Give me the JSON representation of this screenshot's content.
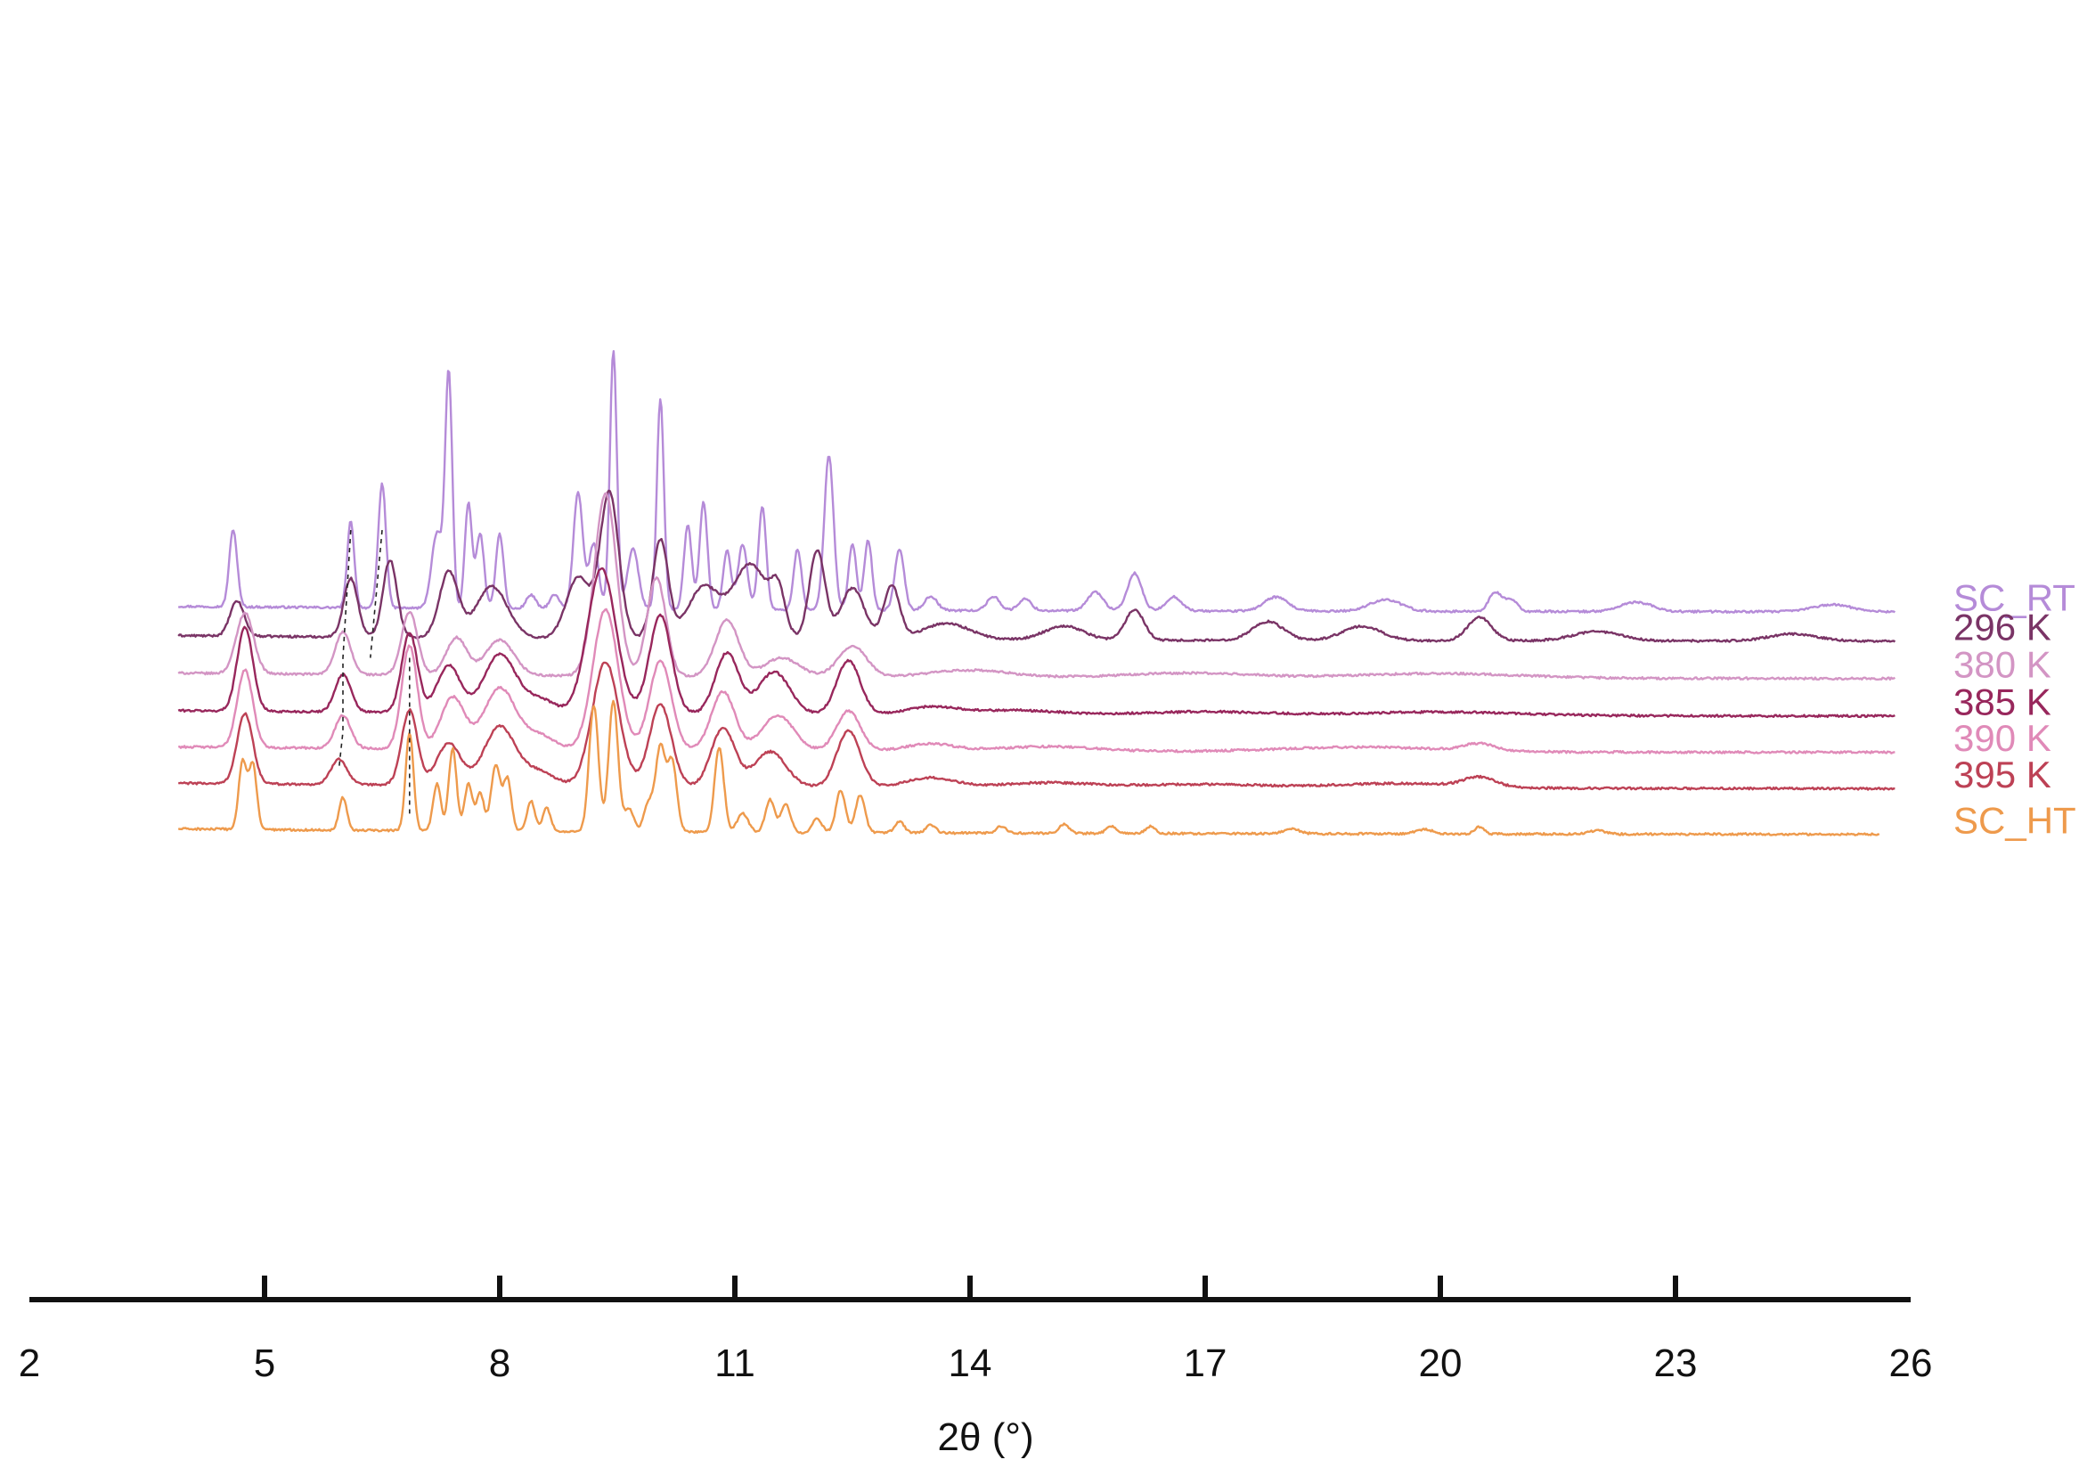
{
  "chart_data": {
    "type": "line",
    "xlabel": "2θ (°)",
    "xlim": [
      2,
      26
    ],
    "xticks": [
      2,
      5,
      8,
      11,
      14,
      17,
      20,
      23,
      26
    ],
    "y_axis_shown": false,
    "grid": false,
    "legend": "labels at right end of each trace",
    "stacked_offset": true,
    "series": [
      {
        "name": "SC_RT",
        "color": "#b58bd8",
        "baseline": 6,
        "x_range": [
          3.9,
          25.8
        ],
        "peaks": [
          [
            4.6,
            3.3,
            0.05
          ],
          [
            6.1,
            3.7,
            0.045
          ],
          [
            6.5,
            5.3,
            0.05
          ],
          [
            7.2,
            3.2,
            0.07
          ],
          [
            7.35,
            9.9,
            0.045
          ],
          [
            7.6,
            4.5,
            0.045
          ],
          [
            7.75,
            3.2,
            0.05
          ],
          [
            8.0,
            3.2,
            0.05
          ],
          [
            8.4,
            0.6,
            0.06
          ],
          [
            8.7,
            0.6,
            0.06
          ],
          [
            9.0,
            5.0,
            0.06
          ],
          [
            9.2,
            2.8,
            0.06
          ],
          [
            9.45,
            11.0,
            0.045
          ],
          [
            9.7,
            2.6,
            0.07
          ],
          [
            10.05,
            9.0,
            0.045
          ],
          [
            10.4,
            3.6,
            0.05
          ],
          [
            10.6,
            4.6,
            0.05
          ],
          [
            10.9,
            2.5,
            0.05
          ],
          [
            11.1,
            2.8,
            0.06
          ],
          [
            11.35,
            4.4,
            0.05
          ],
          [
            11.8,
            2.6,
            0.05
          ],
          [
            12.2,
            6.6,
            0.06
          ],
          [
            12.5,
            2.8,
            0.05
          ],
          [
            12.7,
            3.0,
            0.05
          ],
          [
            13.1,
            2.6,
            0.06
          ],
          [
            13.5,
            0.6,
            0.08
          ],
          [
            14.3,
            0.6,
            0.08
          ],
          [
            14.7,
            0.5,
            0.08
          ],
          [
            15.6,
            0.8,
            0.1
          ],
          [
            16.1,
            1.6,
            0.09
          ],
          [
            16.6,
            0.6,
            0.1
          ],
          [
            17.9,
            0.6,
            0.15
          ],
          [
            19.3,
            0.5,
            0.2
          ],
          [
            20.7,
            0.8,
            0.08
          ],
          [
            20.9,
            0.5,
            0.08
          ],
          [
            22.5,
            0.4,
            0.2
          ],
          [
            25.0,
            0.3,
            0.25
          ]
        ]
      },
      {
        "name": "296 K",
        "color": "#7a3466",
        "baseline": 4.75,
        "x_range": [
          3.9,
          25.8
        ],
        "peaks": [
          [
            4.65,
            1.5,
            0.09
          ],
          [
            6.1,
            2.5,
            0.09
          ],
          [
            6.6,
            3.3,
            0.09
          ],
          [
            7.35,
            2.8,
            0.12
          ],
          [
            7.9,
            2.2,
            0.2
          ],
          [
            9.0,
            2.6,
            0.15
          ],
          [
            9.4,
            6.2,
            0.12
          ],
          [
            10.05,
            4.2,
            0.1
          ],
          [
            10.6,
            2.2,
            0.2
          ],
          [
            11.2,
            3.2,
            0.22
          ],
          [
            11.55,
            1.7,
            0.09
          ],
          [
            12.05,
            3.8,
            0.1
          ],
          [
            12.5,
            2.2,
            0.15
          ],
          [
            13.0,
            2.3,
            0.1
          ],
          [
            13.7,
            0.7,
            0.3
          ],
          [
            15.2,
            0.6,
            0.25
          ],
          [
            16.1,
            1.3,
            0.12
          ],
          [
            17.8,
            0.8,
            0.2
          ],
          [
            19.0,
            0.6,
            0.25
          ],
          [
            20.5,
            1.0,
            0.15
          ],
          [
            22.0,
            0.4,
            0.3
          ],
          [
            24.5,
            0.3,
            0.3
          ]
        ]
      },
      {
        "name": "380 K",
        "color": "#d395c4",
        "baseline": 3.15,
        "x_range": [
          3.9,
          25.8
        ],
        "peaks": [
          [
            4.75,
            2.6,
            0.11
          ],
          [
            6.0,
            1.8,
            0.1
          ],
          [
            6.85,
            2.7,
            0.1
          ],
          [
            7.45,
            1.6,
            0.13
          ],
          [
            8.0,
            1.5,
            0.18
          ],
          [
            9.35,
            7.8,
            0.14
          ],
          [
            10.0,
            4.2,
            0.12
          ],
          [
            10.9,
            2.4,
            0.15
          ],
          [
            11.6,
            0.8,
            0.22
          ],
          [
            12.5,
            1.3,
            0.18
          ],
          [
            14.0,
            0.3,
            0.5
          ],
          [
            16.8,
            0.2,
            0.8
          ],
          [
            20.0,
            0.2,
            1.0
          ]
        ]
      },
      {
        "name": "385 K",
        "color": "#98275c",
        "baseline": 1.55,
        "x_range": [
          3.9,
          25.8
        ],
        "peaks": [
          [
            4.75,
            3.6,
            0.1
          ],
          [
            6.0,
            1.6,
            0.1
          ],
          [
            6.85,
            3.4,
            0.1
          ],
          [
            7.35,
            2.0,
            0.15
          ],
          [
            8.0,
            2.5,
            0.2
          ],
          [
            8.5,
            0.6,
            0.2
          ],
          [
            9.3,
            6.2,
            0.18
          ],
          [
            10.05,
            4.2,
            0.14
          ],
          [
            10.9,
            2.6,
            0.15
          ],
          [
            11.5,
            1.8,
            0.2
          ],
          [
            12.45,
            2.3,
            0.15
          ],
          [
            13.5,
            0.3,
            0.3
          ],
          [
            14.5,
            0.2,
            0.6
          ],
          [
            17.0,
            0.15,
            0.8
          ],
          [
            20.0,
            0.15,
            1.0
          ]
        ]
      },
      {
        "name": "390 K",
        "color": "#e08ab8",
        "baseline": 0,
        "x_range": [
          3.9,
          25.8
        ],
        "peaks": [
          [
            4.75,
            3.3,
            0.1
          ],
          [
            6.0,
            1.4,
            0.1
          ],
          [
            6.85,
            4.4,
            0.1
          ],
          [
            7.4,
            2.2,
            0.15
          ],
          [
            8.0,
            2.6,
            0.2
          ],
          [
            8.5,
            0.6,
            0.2
          ],
          [
            9.35,
            6.0,
            0.16
          ],
          [
            10.05,
            3.8,
            0.14
          ],
          [
            10.85,
            2.5,
            0.15
          ],
          [
            11.55,
            1.5,
            0.2
          ],
          [
            12.45,
            1.7,
            0.15
          ],
          [
            13.5,
            0.3,
            0.3
          ],
          [
            15.0,
            0.2,
            0.6
          ],
          [
            19.0,
            0.2,
            1.0
          ],
          [
            20.5,
            0.3,
            0.2
          ]
        ]
      },
      {
        "name": "395 K",
        "color": "#bd4155",
        "baseline": -1.55,
        "x_range": [
          3.9,
          25.8
        ],
        "peaks": [
          [
            4.75,
            3.0,
            0.1
          ],
          [
            5.95,
            1.1,
            0.1
          ],
          [
            6.85,
            3.2,
            0.1
          ],
          [
            7.35,
            1.8,
            0.15
          ],
          [
            8.0,
            2.5,
            0.2
          ],
          [
            8.5,
            0.6,
            0.2
          ],
          [
            9.35,
            5.3,
            0.17
          ],
          [
            10.05,
            3.5,
            0.14
          ],
          [
            10.85,
            2.5,
            0.15
          ],
          [
            11.45,
            1.5,
            0.2
          ],
          [
            12.45,
            2.4,
            0.15
          ],
          [
            13.5,
            0.4,
            0.3
          ],
          [
            15.0,
            0.2,
            0.6
          ],
          [
            17.0,
            0.15,
            0.8
          ],
          [
            19.5,
            0.2,
            0.8
          ],
          [
            20.5,
            0.4,
            0.2
          ]
        ]
      },
      {
        "name": "SC_HT",
        "color": "#ee9a4c",
        "baseline": -3.5,
        "x_range": [
          3.9,
          25.6
        ],
        "peaks": [
          [
            4.72,
            2.9,
            0.05
          ],
          [
            4.85,
            2.8,
            0.05
          ],
          [
            6.0,
            1.4,
            0.05
          ],
          [
            6.85,
            4.2,
            0.05
          ],
          [
            7.2,
            2.0,
            0.05
          ],
          [
            7.4,
            3.5,
            0.05
          ],
          [
            7.6,
            2.0,
            0.05
          ],
          [
            7.75,
            1.6,
            0.05
          ],
          [
            7.95,
            2.8,
            0.06
          ],
          [
            8.1,
            2.2,
            0.05
          ],
          [
            8.4,
            1.3,
            0.05
          ],
          [
            8.6,
            1.0,
            0.05
          ],
          [
            9.2,
            5.4,
            0.06
          ],
          [
            9.45,
            5.6,
            0.06
          ],
          [
            9.65,
            1.0,
            0.06
          ],
          [
            9.9,
            1.2,
            0.06
          ],
          [
            10.05,
            3.6,
            0.06
          ],
          [
            10.2,
            3.0,
            0.06
          ],
          [
            10.8,
            3.6,
            0.06
          ],
          [
            11.1,
            0.8,
            0.07
          ],
          [
            11.45,
            1.4,
            0.06
          ],
          [
            11.65,
            1.2,
            0.06
          ],
          [
            12.05,
            0.6,
            0.06
          ],
          [
            12.35,
            1.8,
            0.06
          ],
          [
            12.6,
            1.6,
            0.06
          ],
          [
            13.1,
            0.5,
            0.06
          ],
          [
            13.5,
            0.35,
            0.06
          ],
          [
            14.4,
            0.3,
            0.06
          ],
          [
            15.2,
            0.4,
            0.06
          ],
          [
            15.8,
            0.3,
            0.06
          ],
          [
            16.3,
            0.3,
            0.06
          ],
          [
            18.1,
            0.2,
            0.1
          ],
          [
            19.8,
            0.2,
            0.1
          ],
          [
            20.5,
            0.3,
            0.06
          ],
          [
            22.0,
            0.15,
            0.1
          ]
        ]
      }
    ],
    "guide_lines": [
      {
        "color": "#222222",
        "points": [
          [
            6.1,
            0
          ],
          [
            6.0,
            2
          ],
          [
            6.0,
            4
          ],
          [
            5.95,
            5
          ]
        ]
      },
      {
        "color": "#222222",
        "points": [
          [
            6.5,
            0
          ],
          [
            6.35,
            2
          ]
        ]
      },
      {
        "color": "#222222",
        "points": [
          [
            6.85,
            2
          ],
          [
            6.85,
            6
          ]
        ]
      }
    ]
  }
}
